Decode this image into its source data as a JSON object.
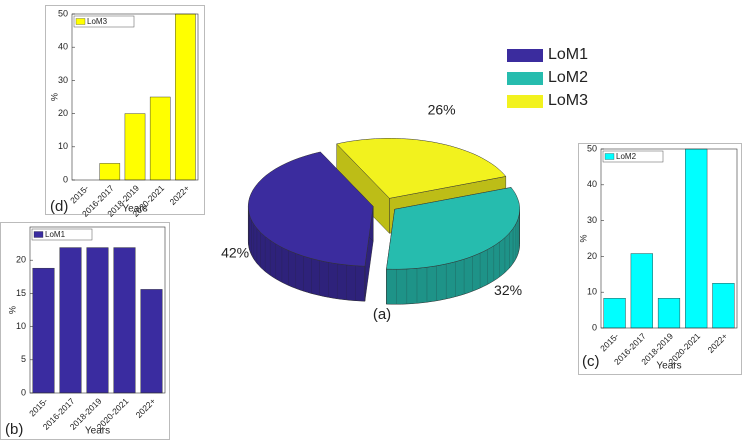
{
  "chart_data": [
    {
      "type": "pie",
      "label": "(a)",
      "categories": [
        "LoM1",
        "LoM2",
        "LoM3"
      ],
      "values": [
        42,
        32,
        26
      ],
      "value_labels": [
        "42%",
        "32%",
        "26%"
      ],
      "colors": [
        "#3b2c9e",
        "#26bcae",
        "#f2f21e"
      ],
      "legend": true
    },
    {
      "type": "bar",
      "label": "(b)",
      "categories": [
        "2015-",
        "2016-2017",
        "2018-2019",
        "2020-2021",
        "2022+"
      ],
      "series": [
        {
          "name": "LoM1",
          "color": "#3a2ca0",
          "values": [
            18.8,
            21.9,
            21.9,
            21.9,
            15.6
          ]
        }
      ],
      "xlabel": "Years",
      "ylabel": "%",
      "ylim": [
        0,
        25
      ],
      "yticks": [
        0,
        5,
        10,
        15,
        20
      ]
    },
    {
      "type": "bar",
      "label": "(c)",
      "categories": [
        "2015-",
        "2016-2017",
        "2018-2019",
        "2020-2021",
        "2022+"
      ],
      "series": [
        {
          "name": "LoM2",
          "color": "#00ffff",
          "values": [
            8.3,
            20.8,
            8.3,
            50,
            12.5
          ]
        }
      ],
      "xlabel": "Years",
      "ylabel": "%",
      "ylim": [
        0,
        50
      ],
      "yticks": [
        0,
        10,
        20,
        30,
        40,
        50
      ]
    },
    {
      "type": "bar",
      "label": "(d)",
      "categories": [
        "2015-",
        "2016-2017",
        "2018-2019",
        "2020-2021",
        "2022+"
      ],
      "series": [
        {
          "name": "LoM3",
          "color": "#ffff00",
          "values": [
            0,
            5,
            20,
            25,
            50
          ]
        }
      ],
      "xlabel": "Years",
      "ylabel": "%",
      "ylim": [
        0,
        50
      ],
      "yticks": [
        0,
        10,
        20,
        30,
        40,
        50
      ]
    }
  ]
}
